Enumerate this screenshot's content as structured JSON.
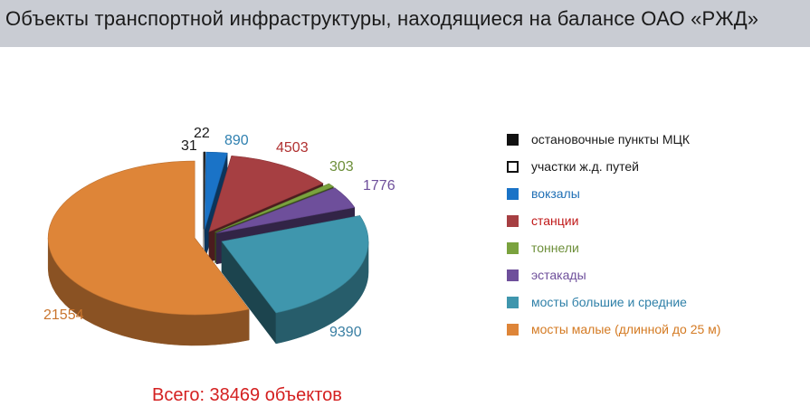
{
  "title": "Объекты транспортной инфраструктуры, находящиеся на балансе ОАО «РЖД»",
  "total_text": "Всего: 38469 объектов",
  "colors": {
    "title_bar": "#c9ccd3",
    "total": "#d42020"
  },
  "chart_data": {
    "type": "pie",
    "style": "3d-exploded",
    "legend_position": "right",
    "slices": [
      {
        "name": "остановочные пункты МЦК",
        "value": 31,
        "color": "#111111",
        "label_color": "#1a1a1a",
        "legend_text_color": "#1a1a1a",
        "swatch": "filled"
      },
      {
        "name": "участки ж.д. путей",
        "value": 22,
        "color": "#ffffff",
        "label_color": "#1a1a1a",
        "legend_text_color": "#1a1a1a",
        "swatch": "outline"
      },
      {
        "name": "вокзалы",
        "value": 890,
        "color": "#1a73c7",
        "label_color": "#2f80b0",
        "legend_text_color": "#1f6fb5",
        "swatch": "filled"
      },
      {
        "name": "станции",
        "value": 4503,
        "color": "#a63f42",
        "label_color": "#b03030",
        "legend_text_color": "#c01818",
        "swatch": "filled"
      },
      {
        "name": "тоннели",
        "value": 303,
        "color": "#7aa23e",
        "label_color": "#6d8f3a",
        "legend_text_color": "#6d8f3a",
        "swatch": "filled"
      },
      {
        "name": "эстакады",
        "value": 1776,
        "color": "#6e4f9b",
        "label_color": "#6e4f9b",
        "legend_text_color": "#6e4f9b",
        "swatch": "filled"
      },
      {
        "name": "мосты большие и средние",
        "value": 9390,
        "color": "#3f96ad",
        "label_color": "#3a7fa3",
        "legend_text_color": "#2f80a8",
        "swatch": "filled"
      },
      {
        "name": "мосты малые (длинной до 25 м)",
        "value": 21554,
        "color": "#de8538",
        "label_color": "#c9752e",
        "legend_text_color": "#d47a22",
        "swatch": "filled"
      }
    ]
  }
}
